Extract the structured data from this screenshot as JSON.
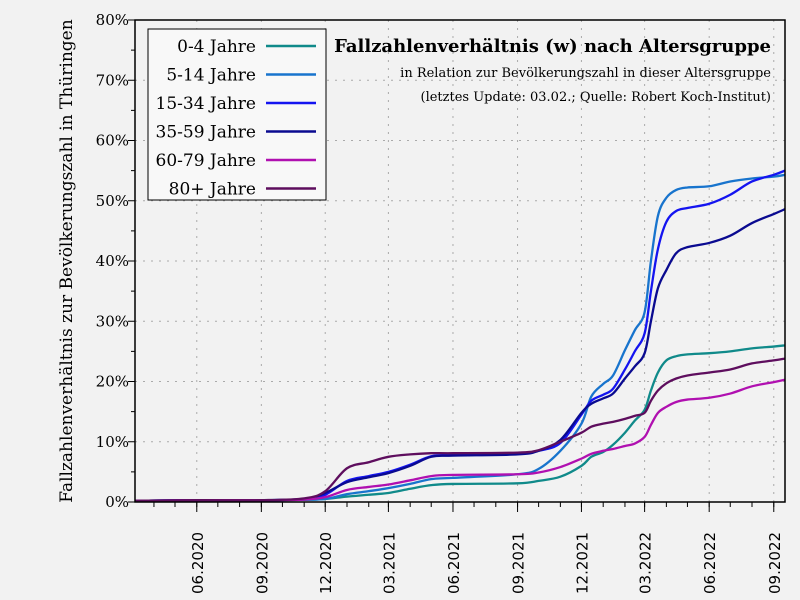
{
  "chart_data": {
    "type": "line",
    "title": "Fallzahlenverhältnis (w) nach Altersgruppe",
    "subtitle": "in Relation zur Bevölkerungszahl in dieser Altersgruppe",
    "note": "(letztes Update: 03.02.; Quelle: Robert Koch-Institut)",
    "xlabel": "",
    "ylabel": "Fallzahlenverhältnis zur Bevölkerungszahl in Thüringen",
    "xlim": [
      "2020-03-05",
      "2022-09-17"
    ],
    "ylim": [
      0,
      80
    ],
    "grid": true,
    "legend": "top-left",
    "x_ticks": [
      {
        "date": "2020-06-01",
        "label": "06.2020"
      },
      {
        "date": "2020-09-01",
        "label": "09.2020"
      },
      {
        "date": "2020-12-01",
        "label": "12.2020"
      },
      {
        "date": "2021-03-01",
        "label": "03.2021"
      },
      {
        "date": "2021-06-01",
        "label": "06.2021"
      },
      {
        "date": "2021-09-01",
        "label": "09.2021"
      },
      {
        "date": "2021-12-01",
        "label": "12.2021"
      },
      {
        "date": "2022-03-01",
        "label": "03.2022"
      },
      {
        "date": "2022-06-01",
        "label": "06.2022"
      },
      {
        "date": "2022-09-01",
        "label": "09.2022"
      }
    ],
    "y_ticks": [
      {
        "value": 0,
        "label": "0%"
      },
      {
        "value": 10,
        "label": "10%"
      },
      {
        "value": 20,
        "label": "20%"
      },
      {
        "value": 30,
        "label": "30%"
      },
      {
        "value": 40,
        "label": "40%"
      },
      {
        "value": 50,
        "label": "50%"
      },
      {
        "value": 60,
        "label": "60%"
      },
      {
        "value": 70,
        "label": "70%"
      },
      {
        "value": 80,
        "label": "80%"
      }
    ],
    "x": [
      "2020-03-05",
      "2020-06-01",
      "2020-09-01",
      "2020-11-01",
      "2020-12-01",
      "2021-01-01",
      "2021-02-01",
      "2021-03-01",
      "2021-04-01",
      "2021-05-01",
      "2021-06-01",
      "2021-09-01",
      "2021-10-01",
      "2021-11-01",
      "2021-12-01",
      "2021-12-15",
      "2022-01-01",
      "2022-01-15",
      "2022-02-01",
      "2022-02-15",
      "2022-03-01",
      "2022-03-10",
      "2022-03-20",
      "2022-04-01",
      "2022-04-15",
      "2022-05-01",
      "2022-06-01",
      "2022-07-01",
      "2022-08-01",
      "2022-09-01",
      "2022-09-17"
    ],
    "series": [
      {
        "name": "0-4 Jahre",
        "color": "#108a8a",
        "values": [
          0.2,
          0.3,
          0.3,
          0.35,
          0.5,
          0.9,
          1.2,
          1.5,
          2.2,
          2.8,
          3.0,
          3.1,
          3.5,
          4.2,
          6.0,
          7.5,
          8.3,
          9.5,
          11.5,
          13.5,
          15.3,
          18.5,
          21.5,
          23.5,
          24.2,
          24.5,
          24.7,
          25.0,
          25.5,
          25.8,
          26.0
        ]
      },
      {
        "name": "5-14 Jahre",
        "color": "#1874cd",
        "values": [
          0.2,
          0.3,
          0.3,
          0.4,
          0.5,
          1.3,
          1.8,
          2.3,
          3.0,
          3.8,
          4.0,
          4.6,
          5.5,
          8.5,
          13.0,
          17.5,
          19.6,
          21.0,
          25.2,
          28.5,
          31.5,
          40.0,
          47.5,
          50.5,
          51.8,
          52.2,
          52.4,
          53.2,
          53.7,
          54.0,
          54.3
        ]
      },
      {
        "name": "15-34 Jahre",
        "color": "#1414f0",
        "values": [
          0.2,
          0.3,
          0.3,
          0.5,
          1.2,
          3.5,
          4.3,
          5.0,
          6.2,
          7.6,
          7.8,
          8.0,
          8.5,
          9.8,
          14.5,
          16.8,
          17.8,
          18.8,
          22.0,
          25.0,
          28.0,
          35.0,
          42.0,
          46.5,
          48.3,
          48.8,
          49.5,
          51.0,
          53.2,
          54.3,
          55.0
        ]
      },
      {
        "name": "35-59 Jahre",
        "color": "#0a0a90",
        "values": [
          0.2,
          0.3,
          0.3,
          0.5,
          1.5,
          3.3,
          4.1,
          4.8,
          6.0,
          7.5,
          7.7,
          7.9,
          8.5,
          10.3,
          14.8,
          16.3,
          17.2,
          18.0,
          20.5,
          22.5,
          24.7,
          30.0,
          35.5,
          38.5,
          41.3,
          42.3,
          43.0,
          44.2,
          46.3,
          47.8,
          48.6
        ]
      },
      {
        "name": "60-79 Jahre",
        "color": "#b010b0",
        "values": [
          0.2,
          0.3,
          0.3,
          0.4,
          0.8,
          2.0,
          2.5,
          2.9,
          3.6,
          4.3,
          4.5,
          4.6,
          4.9,
          5.8,
          7.2,
          8.0,
          8.5,
          8.8,
          9.3,
          9.7,
          10.8,
          12.8,
          14.8,
          15.8,
          16.6,
          17.0,
          17.3,
          18.0,
          19.2,
          19.9,
          20.3
        ]
      },
      {
        "name": "80+ Jahre",
        "color": "#5e0e5e",
        "values": [
          0.2,
          0.3,
          0.3,
          0.6,
          1.8,
          5.6,
          6.6,
          7.5,
          7.9,
          8.1,
          8.1,
          8.2,
          8.6,
          10.0,
          11.5,
          12.5,
          13.0,
          13.3,
          13.8,
          14.3,
          14.8,
          16.8,
          18.5,
          19.7,
          20.5,
          21.0,
          21.5,
          22.0,
          23.0,
          23.5,
          23.8
        ]
      }
    ]
  }
}
